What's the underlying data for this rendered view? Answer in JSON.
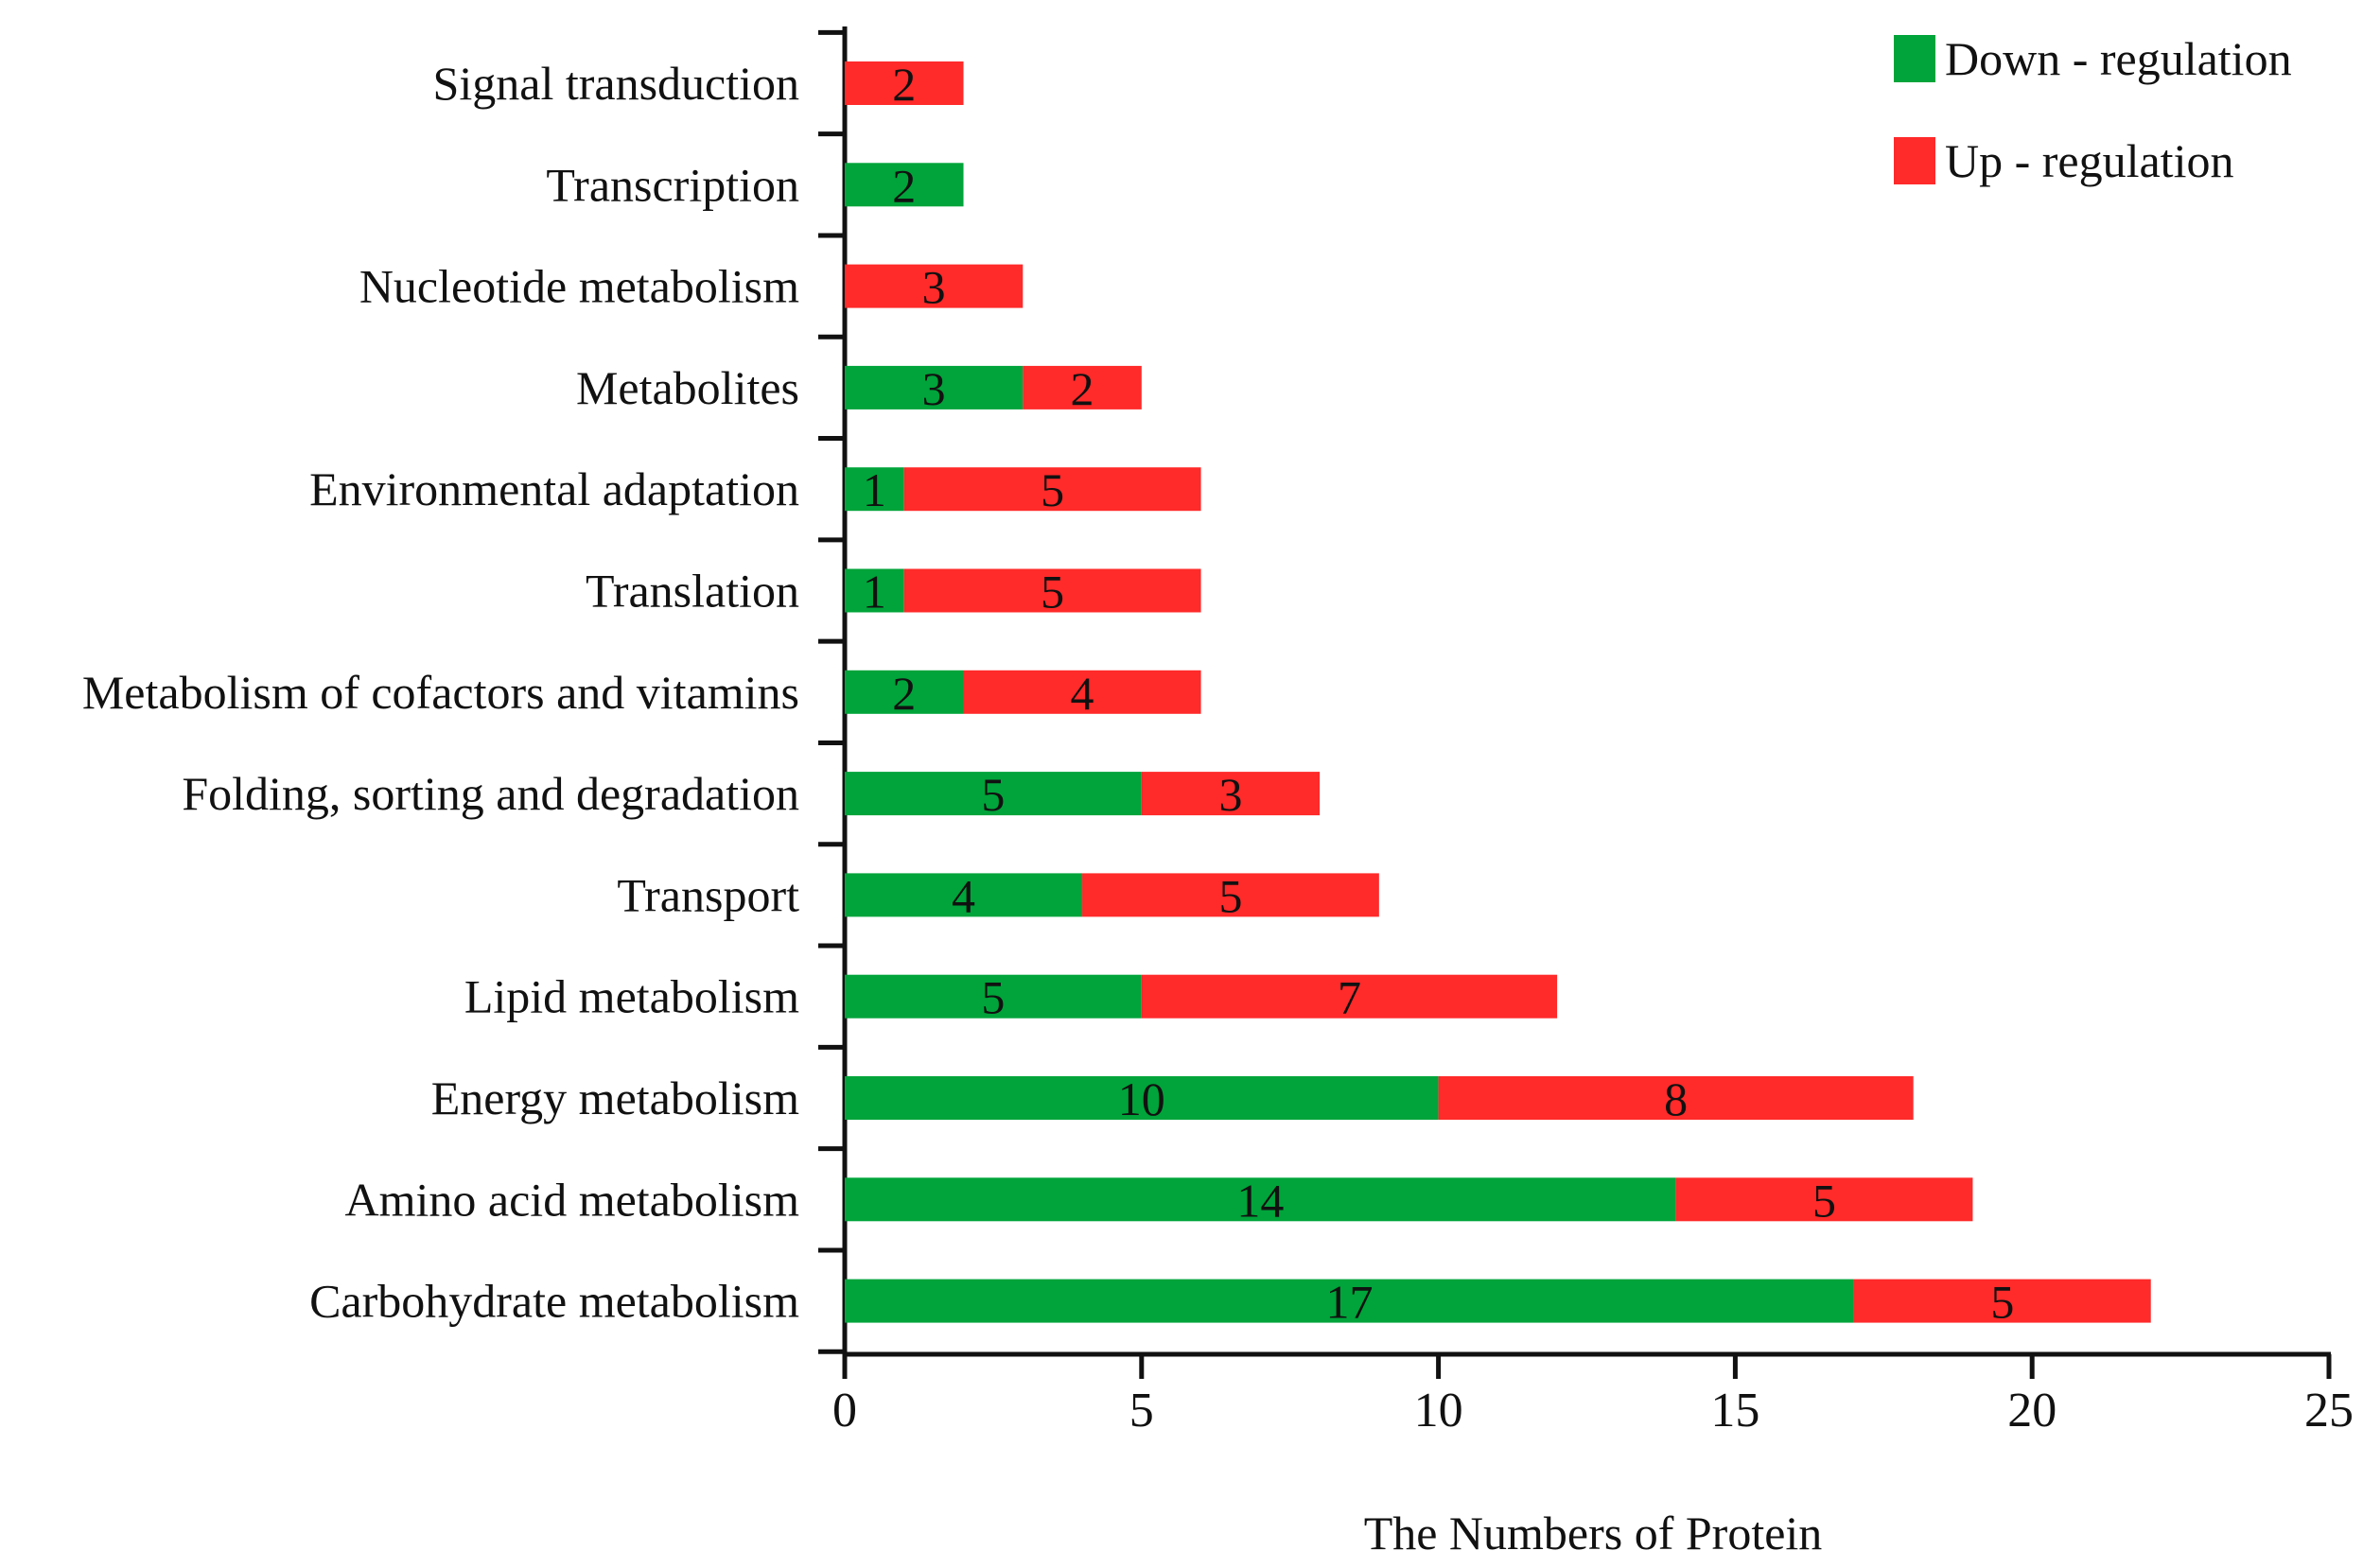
{
  "chart_data": {
    "type": "bar",
    "orientation": "horizontal",
    "stacked": true,
    "title": "",
    "xlabel": "The Numbers of  Protein",
    "ylabel": "",
    "xlim": [
      0,
      25
    ],
    "xticks": [
      0,
      5,
      10,
      15,
      20,
      25
    ],
    "grid": false,
    "legend_position": "top-right",
    "categories": [
      "Signal transduction",
      "Transcription",
      "Nucleotide metabolism",
      "Metabolites",
      "Environmental adaptation",
      "Translation",
      "Metabolism of cofactors and vitamins",
      "Folding, sorting and degradation",
      "Transport",
      "Lipid metabolism",
      "Energy metabolism",
      "Amino acid metabolism",
      "Carbohydrate metabolism"
    ],
    "series": [
      {
        "name": "Down - regulation",
        "color": "#00a43a",
        "values": [
          0,
          2,
          0,
          3,
          1,
          1,
          2,
          5,
          4,
          5,
          10,
          14,
          17
        ],
        "labels": [
          "",
          "2",
          "",
          "3",
          "1",
          "1",
          "2",
          "5",
          "4",
          "5",
          "10",
          "14",
          "17"
        ]
      },
      {
        "name": "Up - regulation",
        "color": "#ff2a2a",
        "values": [
          2,
          0,
          3,
          2,
          5,
          5,
          4,
          3,
          5,
          7,
          8,
          5,
          5
        ],
        "labels": [
          "2",
          "",
          "3",
          "2",
          "5",
          "5",
          "4",
          "3",
          "5",
          "7",
          "8",
          "5",
          "5"
        ]
      }
    ]
  }
}
